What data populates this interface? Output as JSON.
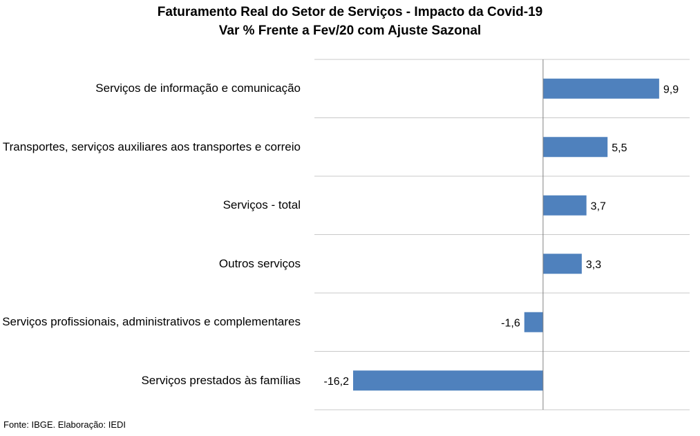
{
  "chart_data": {
    "type": "bar",
    "orientation": "horizontal",
    "title": "Faturamento Real do Setor de Serviços - Impacto da Covid-19",
    "subtitle": "Var % Frente a Fev/20 com Ajuste Sazonal",
    "categories": [
      "Serviços de informação e comunicação",
      "Transportes, serviços auxiliares aos transportes e correio",
      "Serviços - total",
      "Outros serviços",
      "Serviços profissionais, administrativos e complementares",
      "Serviços prestados às famílias"
    ],
    "values": [
      9.9,
      5.5,
      3.7,
      3.3,
      -1.6,
      -16.2
    ],
    "value_labels": [
      "9,9",
      "5,5",
      "3,7",
      "3,3",
      "-1,6",
      "-16,2"
    ],
    "xlim": [
      -19.5,
      12.5
    ],
    "bar_color": "#4f81bd",
    "grid": "horizontal separators"
  },
  "source": "Fonte: IBGE. Elaboração: IEDI"
}
